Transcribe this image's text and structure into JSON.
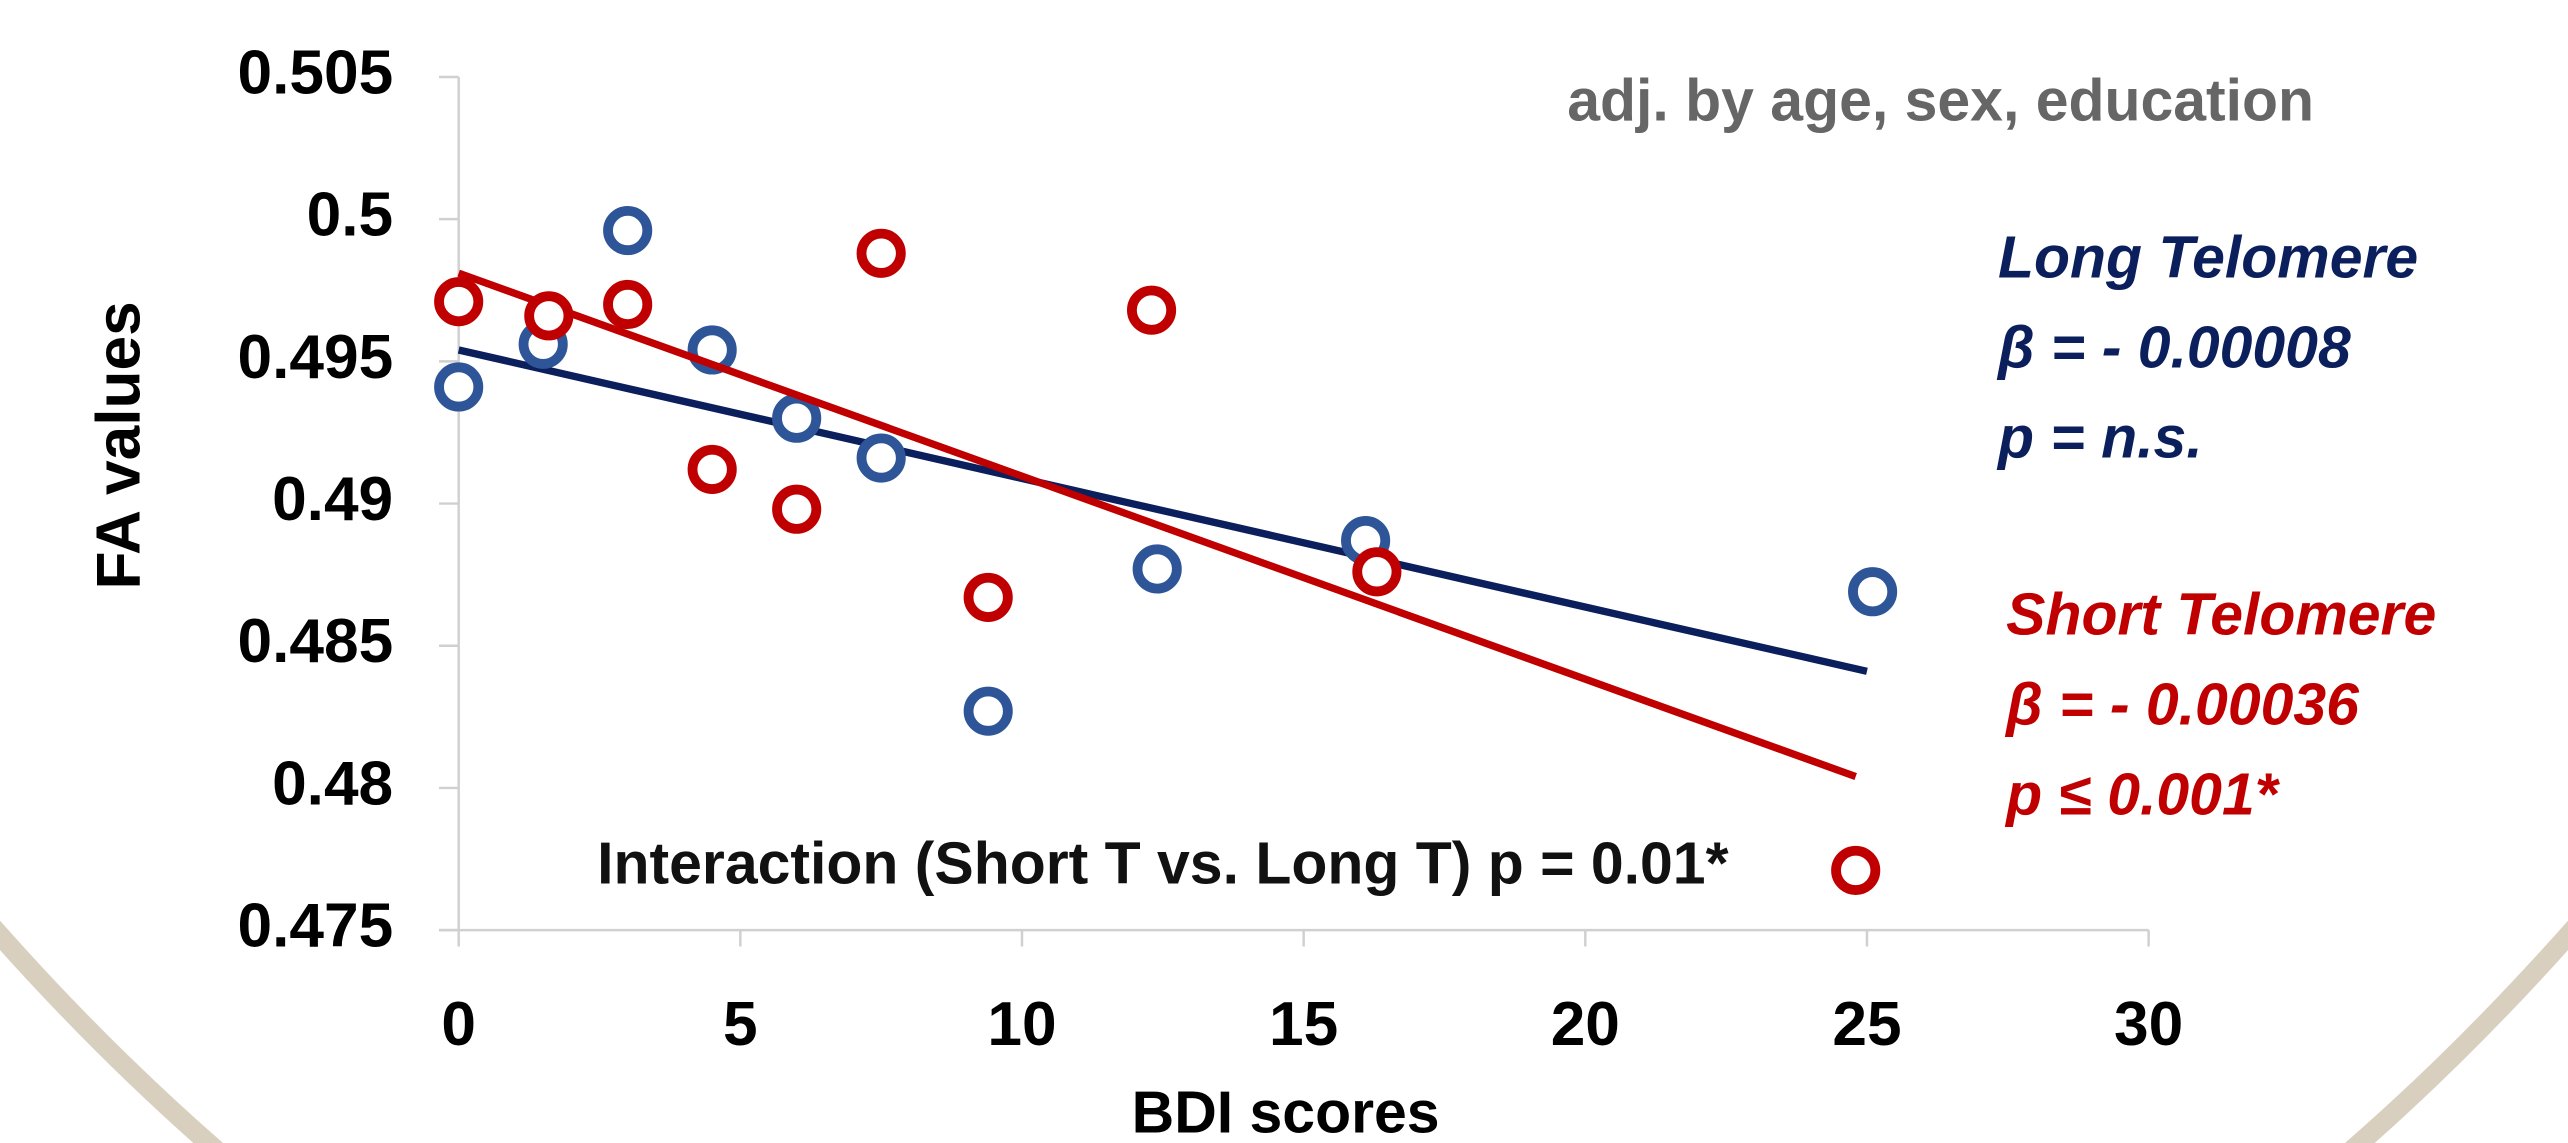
{
  "chart_data": {
    "type": "scatter",
    "x_label": "BDI scores",
    "y_label": "FA values",
    "xlim": [
      0,
      30
    ],
    "xticks": [
      0,
      5,
      10,
      15,
      20,
      25,
      30
    ],
    "ylim": [
      0.475,
      0.505
    ],
    "yticks": [
      0.475,
      0.48,
      0.485,
      0.49,
      0.495,
      0.5,
      0.505
    ],
    "series": [
      {
        "name": "Long Telomere",
        "color": "#2e5597",
        "line_color": "#0b1f5c",
        "x": [
          0,
          1.5,
          3,
          4.5,
          6,
          7.5,
          9.4,
          12.4,
          16.1,
          25.1
        ],
        "values": [
          0.4941,
          0.4956,
          0.4996,
          0.4954,
          0.493,
          0.4916,
          0.4827,
          0.4877,
          0.4887,
          0.4869
        ],
        "trend_x": [
          0,
          25
        ],
        "trend_values": [
          0.4954,
          0.4841
        ],
        "stats": [
          "β = - 0.00008",
          "p = n.s."
        ]
      },
      {
        "name": "Short Telomere",
        "color": "#c00000",
        "line_color": "#c00000",
        "x": [
          0,
          1.6,
          3,
          4.5,
          6,
          7.5,
          9.4,
          12.3,
          16.3,
          24.8
        ],
        "values": [
          0.4971,
          0.4966,
          0.497,
          0.4912,
          0.4898,
          0.4988,
          0.4867,
          0.4968,
          0.4876,
          0.4771
        ],
        "trend_x": [
          0,
          24.8
        ],
        "trend_values": [
          0.4981,
          0.4804
        ],
        "stats": [
          "β = - 0.00036",
          "p ≤ 0.001*"
        ]
      }
    ],
    "annotations": [
      "adj. by age, sex, education",
      "Interaction (Short T vs. Long T) p = 0.01*"
    ]
  }
}
